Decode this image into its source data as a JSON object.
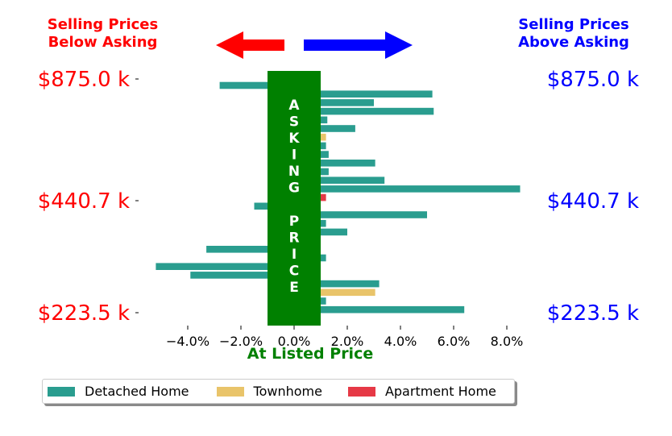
{
  "header": {
    "below_line1": "Selling Prices",
    "below_line2": "Below Asking",
    "above_line1": "Selling Prices",
    "above_line2": "Above Asking"
  },
  "colors": {
    "detached": "#2a9d8f",
    "townhome": "#e9c46a",
    "apartment": "#e63946",
    "asking_band": "#008000",
    "below": "#ff0000",
    "above": "#0000ff"
  },
  "chart_data": {
    "type": "bar",
    "orientation": "horizontal",
    "xlabel": "At Listed Price",
    "band_label": "ASKING PRICE",
    "band_range": [
      -1.0,
      1.0
    ],
    "xlim": [
      -5.5,
      8.6
    ],
    "x_ticks": [
      -4,
      -2,
      0,
      2,
      4,
      6,
      8
    ],
    "x_tick_labels": [
      "−4.0%",
      "−2.0%",
      "0.0%",
      "2.0%",
      "4.0%",
      "6.0%",
      "8.0%"
    ],
    "price_labels_left": [
      "$875.0 k",
      "$440.7 k",
      "$223.5 k"
    ],
    "price_labels_right": [
      "$875.0 k",
      "$440.7 k",
      "$223.5 k"
    ],
    "series": [
      {
        "name": "Detached Home",
        "color": "#2a9d8f"
      },
      {
        "name": "Townhome",
        "color": "#e9c46a"
      },
      {
        "name": "Apartment Home",
        "color": "#e63946"
      }
    ],
    "bars": [
      {
        "value": -2.8,
        "type": "Detached Home"
      },
      {
        "value": 5.2,
        "type": "Detached Home"
      },
      {
        "value": 3.0,
        "type": "Detached Home"
      },
      {
        "value": 5.25,
        "type": "Detached Home"
      },
      {
        "value": 1.25,
        "type": "Detached Home"
      },
      {
        "value": 2.3,
        "type": "Detached Home"
      },
      {
        "value": 1.2,
        "type": "Townhome"
      },
      {
        "value": 1.2,
        "type": "Detached Home"
      },
      {
        "value": 1.3,
        "type": "Detached Home"
      },
      {
        "value": 3.05,
        "type": "Detached Home"
      },
      {
        "value": 1.3,
        "type": "Detached Home"
      },
      {
        "value": 3.4,
        "type": "Detached Home"
      },
      {
        "value": 8.5,
        "type": "Detached Home"
      },
      {
        "value": 1.2,
        "type": "Apartment Home"
      },
      {
        "value": -1.5,
        "type": "Detached Home"
      },
      {
        "value": 5.0,
        "type": "Detached Home"
      },
      {
        "value": 1.2,
        "type": "Detached Home"
      },
      {
        "value": 2.0,
        "type": "Detached Home"
      },
      {
        "value": -0.5,
        "type": "Detached Home"
      },
      {
        "value": -3.3,
        "type": "Detached Home"
      },
      {
        "value": 1.2,
        "type": "Detached Home"
      },
      {
        "value": -5.2,
        "type": "Detached Home"
      },
      {
        "value": -3.9,
        "type": "Detached Home"
      },
      {
        "value": 3.2,
        "type": "Detached Home"
      },
      {
        "value": 3.05,
        "type": "Townhome"
      },
      {
        "value": 1.2,
        "type": "Detached Home"
      },
      {
        "value": 6.4,
        "type": "Detached Home"
      }
    ]
  }
}
